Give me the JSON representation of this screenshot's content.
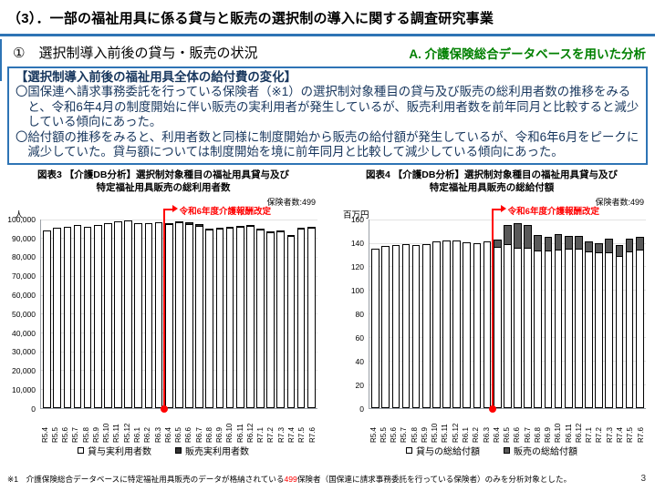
{
  "page": {
    "title": "（3）．一部の福祉用具に係る貸与と販売の選択制の導入に関する調査研究事業",
    "page_number": "3",
    "footnote": {
      "prefix": "※1　介護保険総合データベースに特定福祉用具販売のデータが格納されている",
      "highlight": "499",
      "suffix": "保険者（国保連に請求事務委託を行っている保険者）のみを分析対象とした。"
    }
  },
  "header": {
    "section_title": "①　選択制導入前後の貸与・販売の状況",
    "analysis_label": "A. 介護保険総合データベースを用いた分析"
  },
  "summary_box": {
    "heading": "【選択制導入前後の福祉用具全体の給付費の変化】",
    "bullets": [
      "〇国保連へ請求事務委託を行っている保険者（※1）の選択制対象種目の貸与及び販売の総利用者数の推移をみると、令和6年4月の制度開始に伴い販売の実利用者が発生しているが、販売利用者数を前年同月と比較すると減少している傾向にあった。",
      "〇給付額の推移をみると、利用者数と同様に制度開始から販売の給付額が発生しているが、令和6年6月をピークに減少していた。貸与額については制度開始を境に前年同月と比較して減少している傾向にあった。"
    ]
  },
  "colors": {
    "accent_blue": "#2E74B5",
    "box_text": "#17365D",
    "analysis_green": "#008000",
    "annotation_red": "#FF0000",
    "rental_bar": "#FFFFFF",
    "sales_bar_users": "#333333",
    "sales_bar_amount": "#595959"
  },
  "chart_data": [
    {
      "type": "bar",
      "stacked": true,
      "title_line1": "図表3 【介護DB分析】選択制対象種目の福祉用具貸与及び",
      "title_line2": "特定福祉用具販売の総利用者数",
      "insurer_note": "保険者数:499",
      "unit_label": "人",
      "annotation": "令和6年度介護報酬改定",
      "annotation_before_index": 12,
      "ylim": [
        0,
        100000
      ],
      "ytick_labels": [
        "100,000",
        "90,000",
        "80,000",
        "70,000",
        "60,000",
        "50,000",
        "40,000",
        "30,000",
        "20,000",
        "10,000",
        "0"
      ],
      "grid": true,
      "legend_position": "bottom",
      "categories": [
        "R5.4",
        "R5.5",
        "R5.6",
        "R5.7",
        "R5.8",
        "R5.9",
        "R5.10",
        "R5.11",
        "R5.12",
        "R6.1",
        "R6.2",
        "R6.3",
        "R6.4",
        "R6.5",
        "R6.6",
        "R6.7",
        "R6.8",
        "R6.9",
        "R6.10",
        "R6.11",
        "R6.12",
        "R7.1",
        "R7.2",
        "R7.3",
        "R7.4",
        "R7.5",
        "R7.6"
      ],
      "series": [
        {
          "name": "貸与実利用者数",
          "color": "#FFFFFF",
          "values": [
            94300,
            95400,
            96200,
            97000,
            96000,
            97000,
            98100,
            98900,
            99400,
            97900,
            97900,
            98600,
            96800,
            97800,
            97200,
            96200,
            94200,
            94400,
            94900,
            95500,
            95800,
            94100,
            92800,
            93300,
            90900,
            94400,
            95100
          ]
        },
        {
          "name": "販売実利用者数",
          "color": "#333333",
          "values": [
            0,
            0,
            0,
            0,
            0,
            0,
            0,
            0,
            0,
            0,
            0,
            0,
            700,
            1200,
            1200,
            1100,
            900,
            800,
            800,
            800,
            800,
            700,
            700,
            800,
            700,
            700,
            800
          ]
        }
      ]
    },
    {
      "type": "bar",
      "stacked": true,
      "title_line1": "図表4 【介護DB分析】選択制対象種目の福祉用具貸与及び",
      "title_line2": "特定福祉用具販売の総給付額",
      "insurer_note": "保険者数:499",
      "unit_label": "百万円",
      "annotation": "令和6年度介護報酬改定",
      "annotation_before_index": 12,
      "ylim": [
        0,
        160
      ],
      "ytick_labels": [
        "160",
        "140",
        "120",
        "100",
        "80",
        "60",
        "40",
        "20",
        "0"
      ],
      "grid": true,
      "legend_position": "bottom",
      "categories": [
        "R5.4",
        "R5.5",
        "R5.6",
        "R5.7",
        "R5.8",
        "R5.9",
        "R5.10",
        "R5.11",
        "R5.12",
        "R6.1",
        "R6.2",
        "R6.3",
        "R6.4",
        "R6.5",
        "R6.6",
        "R6.7",
        "R6.8",
        "R6.9",
        "R6.10",
        "R6.11",
        "R6.12",
        "R7.1",
        "R7.2",
        "R7.3",
        "R7.4",
        "R7.5",
        "R7.6"
      ],
      "series": [
        {
          "name": "貸与の総給付額",
          "color": "#FFFFFF",
          "values": [
            135,
            137,
            138,
            139,
            138,
            139,
            141,
            142,
            142,
            140.5,
            140,
            141,
            136,
            138,
            135,
            135,
            133,
            133,
            133.5,
            134,
            134,
            132,
            131,
            131.5,
            128,
            132,
            133.5
          ]
        },
        {
          "name": "販売の総給付額",
          "color": "#595959",
          "values": [
            0,
            0,
            0,
            0,
            0,
            0,
            0,
            0,
            0,
            0,
            0,
            0,
            7,
            17,
            22,
            20,
            14,
            12,
            14,
            12,
            12,
            9,
            9,
            12,
            10,
            11.5,
            11.5
          ]
        }
      ]
    }
  ]
}
